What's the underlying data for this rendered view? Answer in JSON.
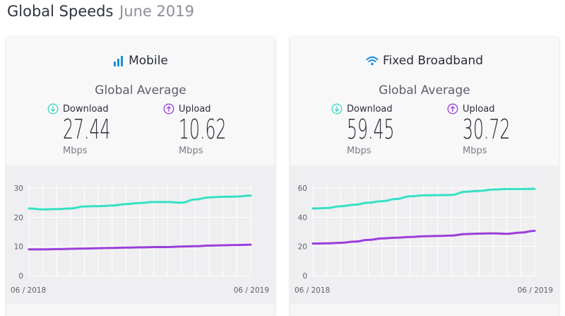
{
  "header": {
    "title": "Global Speeds",
    "subtitle": "June 2019"
  },
  "cards": [
    {
      "title": "Mobile",
      "icon": "signal-bars-icon",
      "average_label": "Global Average",
      "download": {
        "label": "Download",
        "value": "27.44",
        "unit": "Mbps"
      },
      "upload": {
        "label": "Upload",
        "value": "10.62",
        "unit": "Mbps"
      },
      "chart_data": {
        "type": "line",
        "x_labels": [
          "06 / 2018",
          "06 / 2019"
        ],
        "y_ticks": [
          "0",
          "10",
          "20",
          "30"
        ],
        "ylim": [
          0,
          30
        ],
        "grid": true,
        "series": [
          {
            "color": "#36e0c4",
            "values": [
              23.0,
              22.7,
              22.8,
              23.0,
              23.7,
              23.8,
              24.0,
              24.5,
              24.9,
              25.2,
              25.2,
              25.0,
              26.1,
              26.8,
              27.0,
              27.1,
              27.44
            ]
          },
          {
            "color": "#9a3fdb",
            "values": [
              9.0,
              9.0,
              9.1,
              9.2,
              9.3,
              9.4,
              9.5,
              9.6,
              9.7,
              9.8,
              9.8,
              10.0,
              10.1,
              10.3,
              10.4,
              10.5,
              10.62
            ]
          }
        ]
      }
    },
    {
      "title": "Fixed Broadband",
      "icon": "wifi-icon",
      "average_label": "Global Average",
      "download": {
        "label": "Download",
        "value": "59.45",
        "unit": "Mbps"
      },
      "upload": {
        "label": "Upload",
        "value": "30.72",
        "unit": "Mbps"
      },
      "chart_data": {
        "type": "line",
        "x_labels": [
          "06 / 2018",
          "06 / 2019"
        ],
        "y_ticks": [
          "0",
          "20",
          "40",
          "60"
        ],
        "ylim": [
          0,
          60
        ],
        "grid": true,
        "series": [
          {
            "color": "#36e0c4",
            "values": [
              46.0,
              46.3,
              47.5,
              48.6,
              50.0,
              51.0,
              52.5,
              54.3,
              55.0,
              55.1,
              55.3,
              57.5,
              58.0,
              59.0,
              59.3,
              59.3,
              59.45
            ]
          },
          {
            "color": "#9a3fdb",
            "values": [
              22.0,
              22.1,
              22.5,
              23.3,
              24.5,
              25.5,
              26.0,
              26.5,
              27.0,
              27.2,
              27.5,
              28.5,
              28.8,
              29.0,
              28.7,
              29.5,
              30.72
            ]
          }
        ]
      }
    }
  ]
}
